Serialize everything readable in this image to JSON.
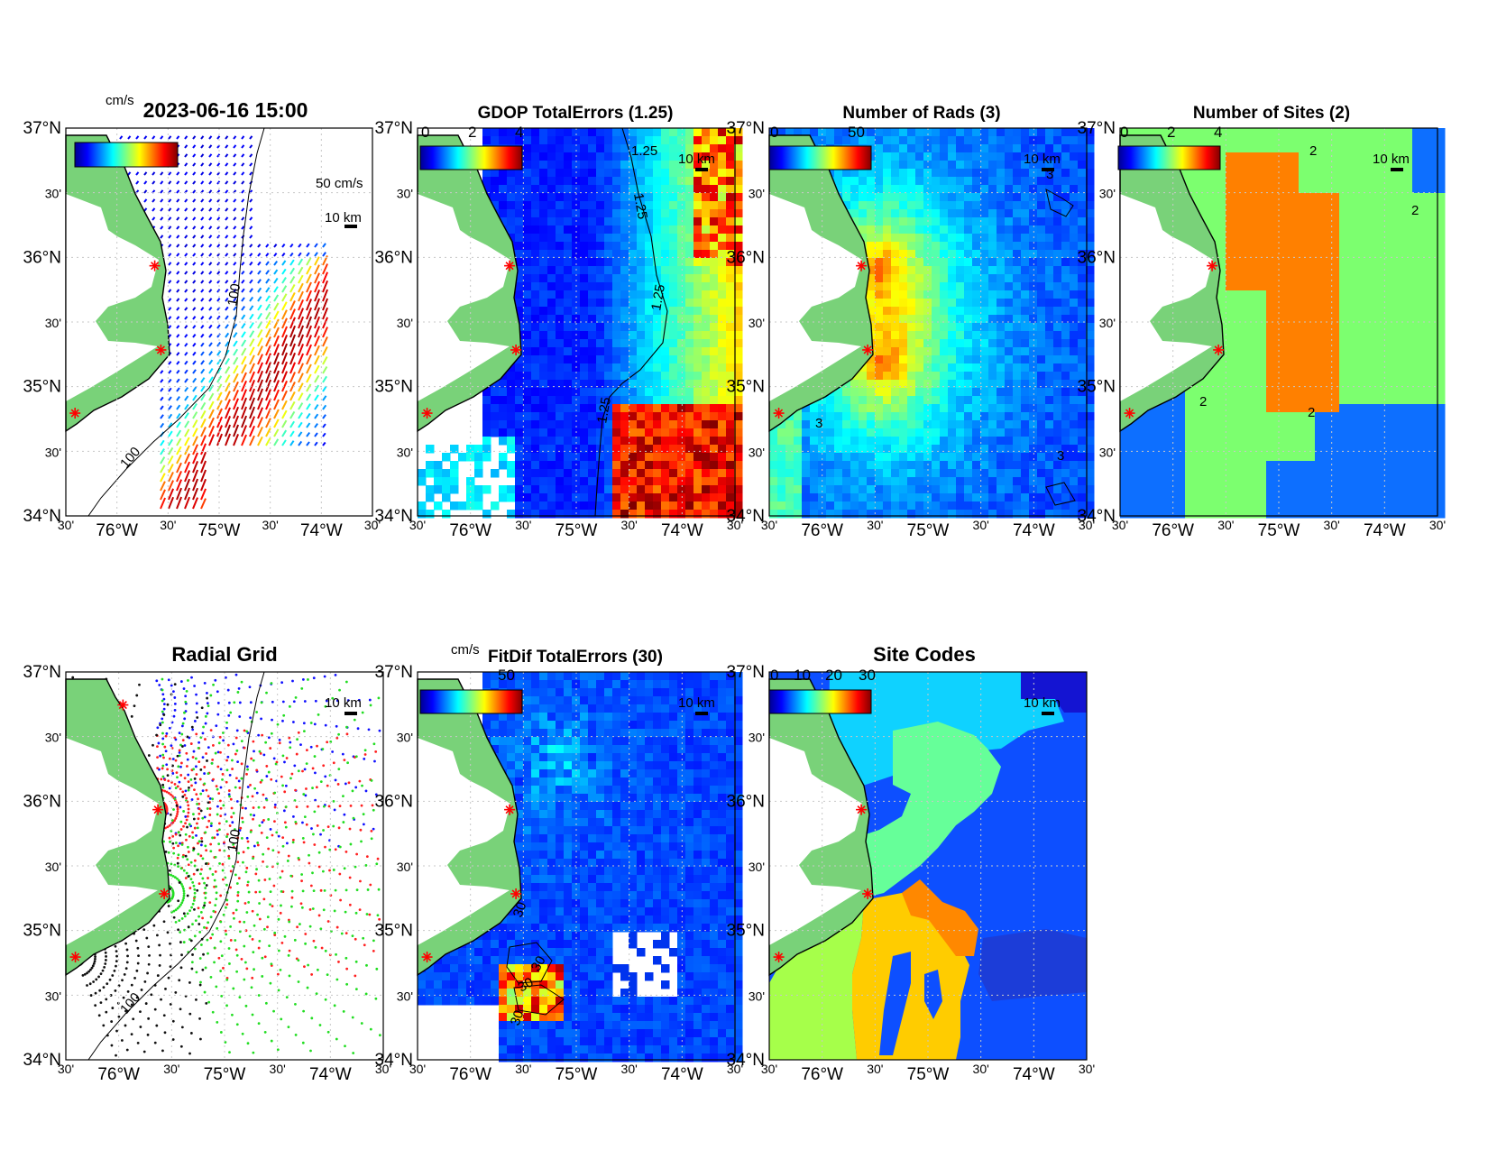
{
  "figure": {
    "timestamp": "2023-06-16 15:00",
    "colors": {
      "land": "#79d279",
      "coast": "#000000",
      "station": "#ff0000",
      "grid": "#c8c8c8",
      "sea_blue": "#0d4fff",
      "deep_blue": "#1616d8"
    },
    "axis_ticks": {
      "lat_labels": [
        "37°N",
        "30'",
        "36°N",
        "30'",
        "35°N",
        "30'",
        "34°N"
      ],
      "lon_labels": [
        "30'",
        "76°W",
        "30'",
        "75°W",
        "30'",
        "74°W",
        "30'"
      ]
    },
    "panels": [
      {
        "id": "currents",
        "title": "2023-06-16 15:00",
        "unit_label": "cm/s",
        "colorbar_ticks": [],
        "scale_text": "10 km",
        "vector_scale_text": "50 cm/s",
        "contour_labels": [
          "100",
          "100"
        ]
      },
      {
        "id": "gdop",
        "title": "GDOP TotalErrors (1.25)",
        "unit_label": "",
        "colorbar_ticks": [
          "0",
          "2",
          "4"
        ],
        "scale_text": "10 km",
        "contour_labels": [
          "1.25",
          "1.25",
          "1.25",
          "1.25"
        ]
      },
      {
        "id": "nrads",
        "title": "Number of Rads (3)",
        "unit_label": "",
        "colorbar_ticks": [
          "0",
          "50"
        ],
        "scale_text": "10 km",
        "contour_labels": [
          "3",
          "3",
          "3"
        ]
      },
      {
        "id": "nsites",
        "title": "Number of Sites (2)",
        "unit_label": "",
        "colorbar_ticks": [
          "0",
          "2",
          "4"
        ],
        "scale_text": "10 km",
        "contour_labels": [
          "2",
          "2",
          "2",
          "2"
        ]
      },
      {
        "id": "radgrid",
        "title": "Radial Grid",
        "unit_label": "",
        "colorbar_ticks": [],
        "scale_text": "10 km",
        "contour_labels": [
          "100",
          "100"
        ]
      },
      {
        "id": "fitdif",
        "title": "FitDif TotalErrors (30)",
        "unit_label": "cm/s",
        "colorbar_ticks": [
          "50"
        ],
        "scale_text": "10 km",
        "contour_labels": [
          "30",
          "30",
          "30",
          "30"
        ]
      },
      {
        "id": "sitecodes",
        "title": "Site Codes",
        "unit_label": "",
        "colorbar_ticks": [
          "0",
          "10",
          "20",
          "30"
        ],
        "scale_text": "10 km",
        "contour_labels": []
      }
    ]
  }
}
